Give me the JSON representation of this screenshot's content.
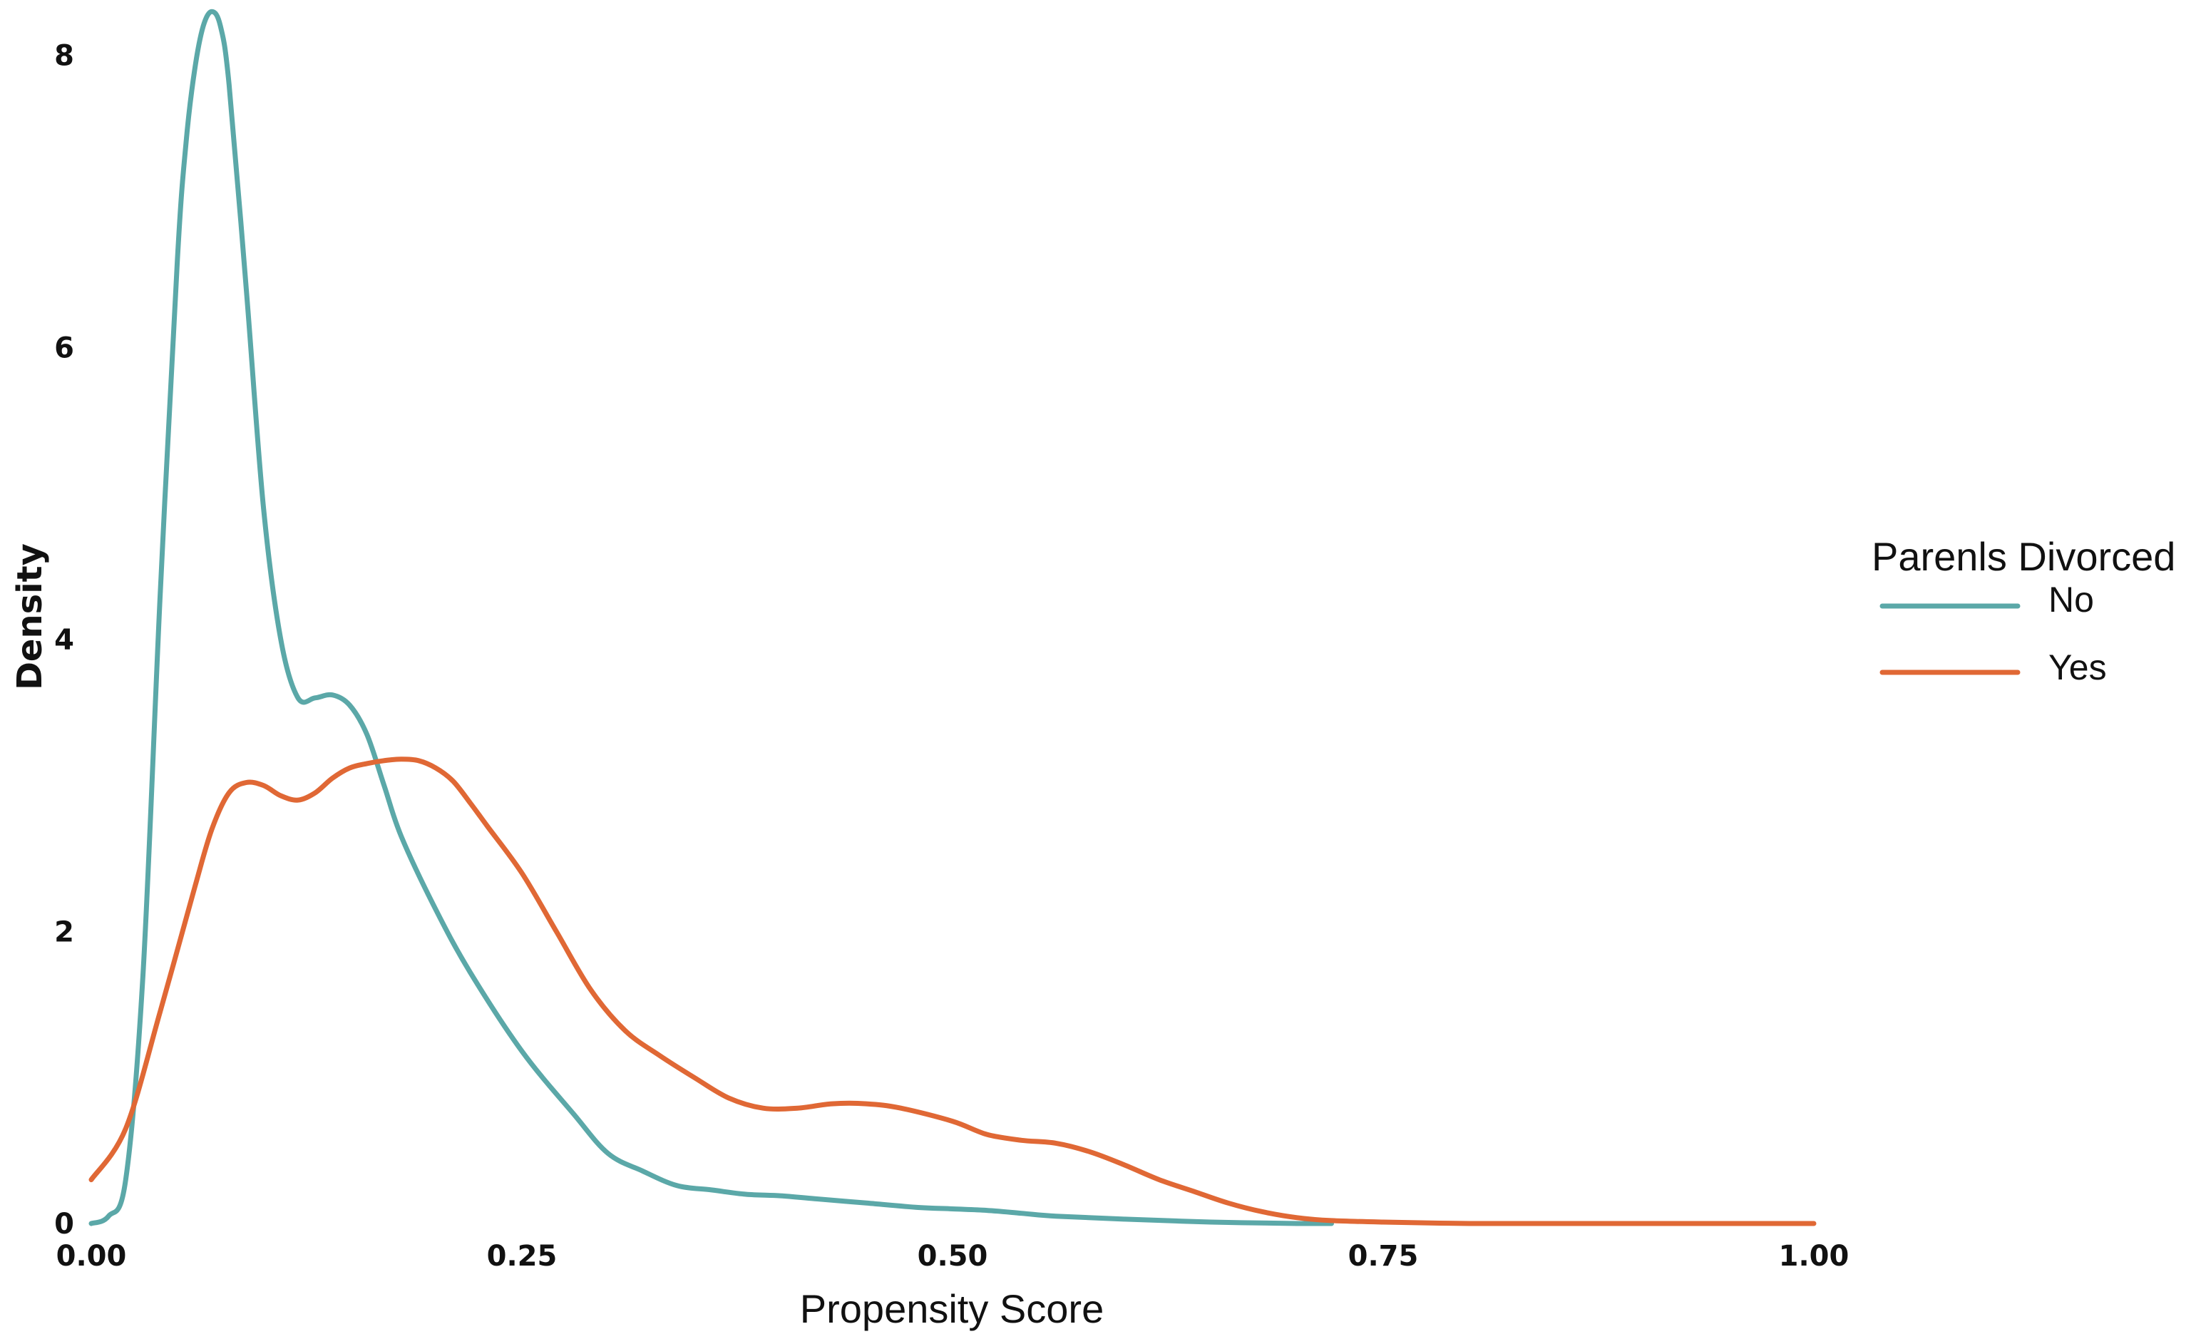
{
  "chart_data": {
    "type": "line",
    "title": "",
    "xlabel": "Propensity Score",
    "ylabel": "Density",
    "xlim": [
      0,
      1
    ],
    "ylim": [
      0,
      8.35
    ],
    "x_ticks": [
      0,
      0.25,
      0.5,
      0.75,
      1
    ],
    "x_tick_labels": [
      "0.00",
      "0.25",
      "0.50",
      "0.75",
      "1.00"
    ],
    "y_ticks": [
      0,
      2,
      4,
      6,
      8
    ],
    "y_tick_labels": [
      "0",
      "2",
      "4",
      "6",
      "8"
    ],
    "grid": false,
    "legend": {
      "title": "Parenls Divorced",
      "placement": "right"
    },
    "series": [
      {
        "name": "No",
        "color": "#5BA8A8",
        "x": [
          0.0,
          0.01,
          0.02,
          0.03,
          0.04,
          0.05,
          0.055,
          0.06,
          0.065,
          0.07,
          0.075,
          0.08,
          0.09,
          0.1,
          0.11,
          0.12,
          0.13,
          0.14,
          0.15,
          0.16,
          0.17,
          0.18,
          0.2,
          0.22,
          0.25,
          0.28,
          0.3,
          0.32,
          0.34,
          0.36,
          0.38,
          0.4,
          0.42,
          0.45,
          0.48,
          0.5,
          0.52,
          0.54,
          0.56,
          0.6,
          0.65,
          0.7,
          0.72
        ],
        "y": [
          0.0,
          0.05,
          0.3,
          1.7,
          4.3,
          6.6,
          7.4,
          7.9,
          8.2,
          8.3,
          8.2,
          7.8,
          6.4,
          4.9,
          4.0,
          3.6,
          3.6,
          3.62,
          3.55,
          3.35,
          3.0,
          2.65,
          2.15,
          1.72,
          1.18,
          0.75,
          0.48,
          0.36,
          0.26,
          0.23,
          0.2,
          0.19,
          0.17,
          0.14,
          0.11,
          0.1,
          0.09,
          0.07,
          0.05,
          0.03,
          0.01,
          0.0,
          0.0
        ]
      },
      {
        "name": "Yes",
        "color": "#E06835",
        "x": [
          0.0,
          0.02,
          0.04,
          0.06,
          0.07,
          0.08,
          0.09,
          0.1,
          0.11,
          0.12,
          0.13,
          0.14,
          0.15,
          0.16,
          0.17,
          0.18,
          0.19,
          0.2,
          0.21,
          0.22,
          0.23,
          0.25,
          0.27,
          0.29,
          0.31,
          0.33,
          0.35,
          0.37,
          0.39,
          0.41,
          0.43,
          0.45,
          0.47,
          0.5,
          0.52,
          0.54,
          0.56,
          0.58,
          0.6,
          0.62,
          0.64,
          0.66,
          0.68,
          0.7,
          0.72,
          0.75,
          0.8,
          0.85,
          0.9,
          1.0
        ],
        "y": [
          0.3,
          0.65,
          1.45,
          2.3,
          2.7,
          2.95,
          3.02,
          3.0,
          2.93,
          2.9,
          2.95,
          3.05,
          3.12,
          3.15,
          3.17,
          3.18,
          3.17,
          3.12,
          3.03,
          2.88,
          2.72,
          2.4,
          2.0,
          1.6,
          1.32,
          1.15,
          1.0,
          0.86,
          0.79,
          0.79,
          0.82,
          0.82,
          0.79,
          0.7,
          0.61,
          0.57,
          0.55,
          0.49,
          0.4,
          0.3,
          0.22,
          0.14,
          0.08,
          0.04,
          0.02,
          0.01,
          0.0,
          0.0,
          0.0,
          0.0
        ]
      }
    ]
  }
}
